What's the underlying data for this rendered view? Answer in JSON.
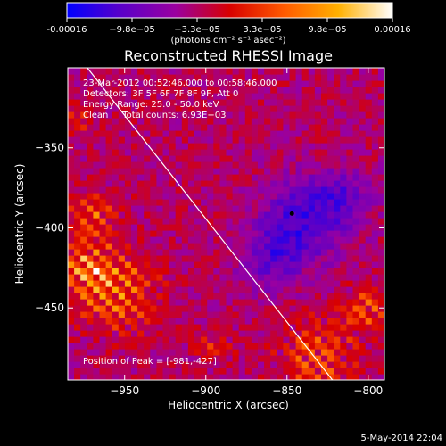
{
  "chart_data": {
    "type": "heatmap",
    "title": "Reconstructed RHESSI Image",
    "xlabel": "Heliocentric X (arcsec)",
    "ylabel": "Heliocentric Y (arcsec)",
    "xlim": [
      -985,
      -790
    ],
    "ylim": [
      -495,
      -300
    ],
    "x_ticks": [
      -950,
      -900,
      -850,
      -800
    ],
    "x_tick_labels": [
      "−950",
      "−900",
      "−850",
      "−800"
    ],
    "y_ticks": [
      -350,
      -400,
      -450
    ],
    "y_tick_labels": [
      "−350",
      "−400",
      "−450"
    ],
    "colorbar": {
      "min": -0.00016,
      "max": 0.00016,
      "tick_labels": [
        "-0.00016",
        "−9.8e−05",
        "−3.3e−05",
        "3.3e−05",
        "9.8e−05",
        "0.00016"
      ],
      "unit_label": "(photons cm⁻² s⁻¹ asec⁻²)",
      "colormap": [
        "#0000ff",
        "#5a00c8",
        "#9a00a0",
        "#d80000",
        "#ff5a00",
        "#ffb000",
        "#ffffff"
      ]
    },
    "annotations": [
      "23-Mar-2012 00:52:46.000 to 00:58:46.000",
      "Detectors: 3F 5F 6F 7F 8F 9F, Att 0",
      "Energy Range: 25.0 - 50.0 keV",
      "Clean     Total counts: 6.93E+03"
    ],
    "peak_label": "Position of Peak = [-981,-427]",
    "peak": [
      -981,
      -427
    ],
    "limb_line": [
      [
        -973,
        -300
      ],
      [
        -822,
        -495
      ]
    ],
    "marker": [
      -847,
      -391
    ],
    "hot_regions": [
      {
        "x": -955,
        "y": -440,
        "r": 22,
        "level": 0.85
      },
      {
        "x": -968,
        "y": -395,
        "r": 16,
        "level": 0.6
      },
      {
        "x": -975,
        "y": -425,
        "r": 14,
        "level": 0.75
      },
      {
        "x": -830,
        "y": -480,
        "r": 22,
        "level": 0.65
      },
      {
        "x": -800,
        "y": -450,
        "r": 14,
        "level": 0.55
      },
      {
        "x": -895,
        "y": -475,
        "r": 10,
        "level": 0.35
      },
      {
        "x": -980,
        "y": -330,
        "r": 10,
        "level": 0.4
      }
    ],
    "cold_regions": [
      {
        "x": -840,
        "y": -395,
        "r": 25,
        "level": 0.85
      },
      {
        "x": -860,
        "y": -420,
        "r": 18,
        "level": 0.6
      },
      {
        "x": -815,
        "y": -380,
        "r": 16,
        "level": 0.55
      }
    ],
    "timestamp": "5-May-2014 22:04"
  }
}
